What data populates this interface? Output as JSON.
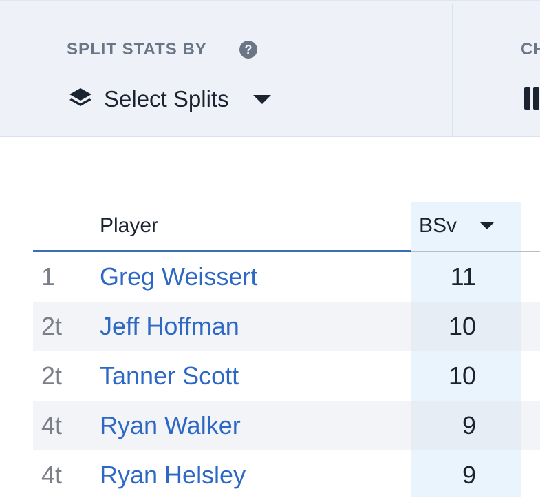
{
  "filters": {
    "split_label": "SPLIT STATS BY",
    "split_button": "Select Splits",
    "next_label": "CH"
  },
  "table": {
    "headers": [
      "Player",
      "BSv"
    ],
    "rows": [
      [
        "1",
        "Greg Weissert",
        "11"
      ],
      [
        "2t",
        "Jeff Hoffman",
        "10"
      ],
      [
        "2t",
        "Tanner Scott",
        "10"
      ],
      [
        "4t",
        "Ryan Walker",
        "9"
      ],
      [
        "4t",
        "Ryan Helsley",
        "9"
      ]
    ]
  }
}
